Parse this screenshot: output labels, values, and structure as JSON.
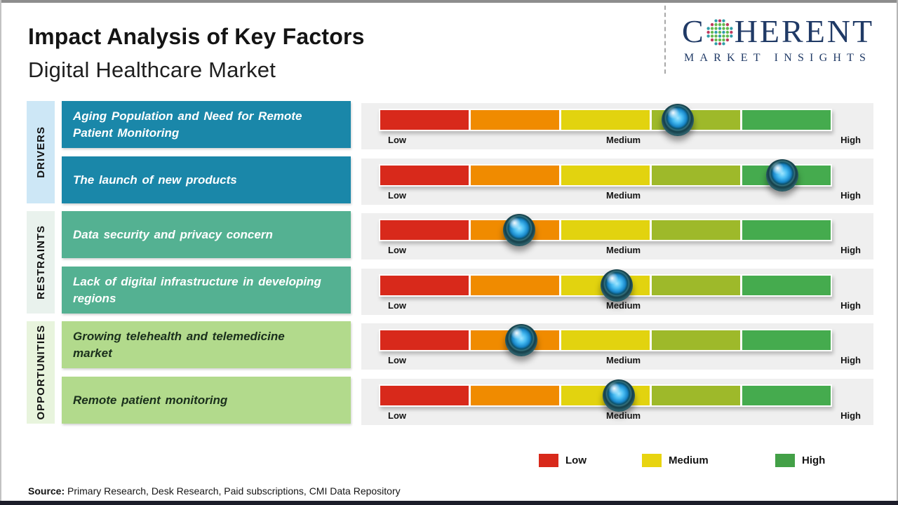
{
  "page": {
    "title": "Impact Analysis of Key Factors",
    "subtitle": "Digital Healthcare Market"
  },
  "logo": {
    "brand_start": "C",
    "brand_end": "HERENT",
    "tagline": "MARKET INSIGHTS",
    "color": "#203a66"
  },
  "groups": [
    {
      "label": "DRIVERS",
      "strip_color": "#cde7f6",
      "box_color": "#1a87a9",
      "text_color": "#ffffff"
    },
    {
      "label": "RESTRAINTS",
      "strip_color": "#e9f2ed",
      "box_color": "#54b192",
      "text_color": "#ffffff"
    },
    {
      "label": "OPPORTUNITIES",
      "strip_color": "#e8f4dd",
      "box_color": "#b2da8c",
      "text_color": "#1a2f1c"
    }
  ],
  "rows": [
    {
      "group": 0,
      "factor": "Aging Population and Need for Remote\nPatient Monitoring",
      "impact_pct": 66
    },
    {
      "group": 0,
      "factor": "The launch of new products",
      "impact_pct": 89
    },
    {
      "group": 1,
      "factor": "Data security and privacy concern",
      "impact_pct": 31
    },
    {
      "group": 1,
      "factor": "Lack of digital infrastructure in developing\nregions",
      "impact_pct": 52.5
    },
    {
      "group": 2,
      "factor": "Growing telehealth and telemedicine\nmarket",
      "impact_pct": 31.5
    },
    {
      "group": 2,
      "factor": "Remote patient monitoring",
      "impact_pct": 53
    }
  ],
  "scale": {
    "low": "Low",
    "medium": "Medium",
    "high": "High"
  },
  "legend": {
    "items": [
      {
        "label": "Low",
        "color": "#d8291b"
      },
      {
        "label": "Medium",
        "color": "#e8d410"
      },
      {
        "label": "High",
        "color": "#43a047"
      }
    ]
  },
  "source": {
    "prefix": "Source:",
    "text": " Primary Research, Desk Research, Paid subscriptions, CMI Data Repository"
  },
  "colors": {
    "bar_segments": [
      "#d8291b",
      "#f08b00",
      "#e2d30f",
      "#9eb92a",
      "#45ab4e"
    ],
    "panel_bg": "#efefef",
    "frame_bottom": "#1c1d29"
  },
  "chart_data": {
    "type": "table",
    "title": "Impact Analysis of Key Factors",
    "subtitle": "Digital Healthcare Market",
    "scale": {
      "labels": [
        "Low",
        "Medium",
        "High"
      ],
      "range_pct": [
        0,
        100
      ]
    },
    "rows": [
      {
        "category": "Drivers",
        "factor": "Aging Population and Need for Remote Patient Monitoring",
        "impact_pct": 66,
        "impact_level": "Medium-High"
      },
      {
        "category": "Drivers",
        "factor": "The launch of new products",
        "impact_pct": 89,
        "impact_level": "High"
      },
      {
        "category": "Restraints",
        "factor": "Data security and privacy concern",
        "impact_pct": 31,
        "impact_level": "Low-Medium"
      },
      {
        "category": "Restraints",
        "factor": "Lack of digital infrastructure in developing regions",
        "impact_pct": 52.5,
        "impact_level": "Medium"
      },
      {
        "category": "Opportunities",
        "factor": "Growing telehealth and telemedicine market",
        "impact_pct": 31.5,
        "impact_level": "Low-Medium"
      },
      {
        "category": "Opportunities",
        "factor": "Remote patient monitoring",
        "impact_pct": 53,
        "impact_level": "Medium"
      }
    ],
    "legend": [
      {
        "label": "Low",
        "color": "#d8291b"
      },
      {
        "label": "Medium",
        "color": "#e8d410"
      },
      {
        "label": "High",
        "color": "#43a047"
      }
    ],
    "legend_position": "bottom-right",
    "source": "Primary Research, Desk Research, Paid subscriptions, CMI Data Repository"
  }
}
